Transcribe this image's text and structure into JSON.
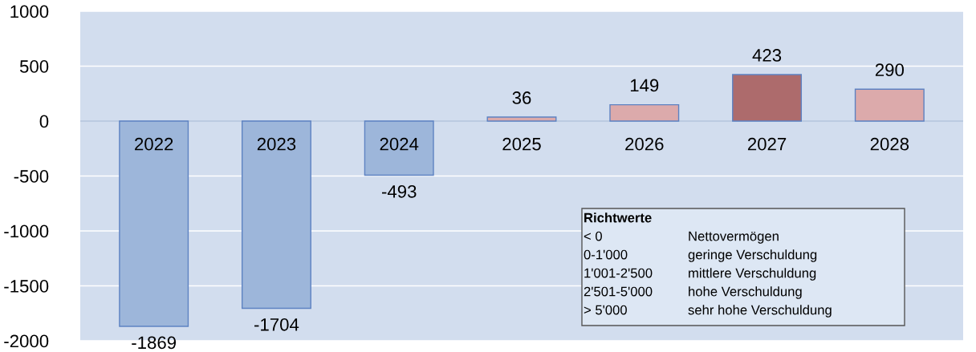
{
  "chart_data": {
    "type": "bar",
    "categories": [
      "2022",
      "2023",
      "2024",
      "2025",
      "2026",
      "2027",
      "2028"
    ],
    "values": [
      -1869,
      -1704,
      -493,
      36,
      149,
      423,
      290
    ],
    "colors": [
      "#9db6da",
      "#9db6da",
      "#9db6da",
      "#dcaaab",
      "#dcaaab",
      "#ad6b6c",
      "#dcaaab"
    ],
    "data_labels": true,
    "ylim": [
      -2000,
      1000
    ],
    "yticks": [
      -2000,
      -1500,
      -1000,
      -500,
      0,
      500,
      1000
    ],
    "grid": "y",
    "annotations": [
      "Richtwerte",
      "< 0",
      "Nettovermögen",
      "0-1'000",
      "geringe Verschuldung",
      "1'001-2'500",
      "mittlere Verschuldung",
      "2'501-5'000",
      "hohe Verschuldung",
      "> 5'000",
      "sehr hohe Verschuldung"
    ]
  }
}
